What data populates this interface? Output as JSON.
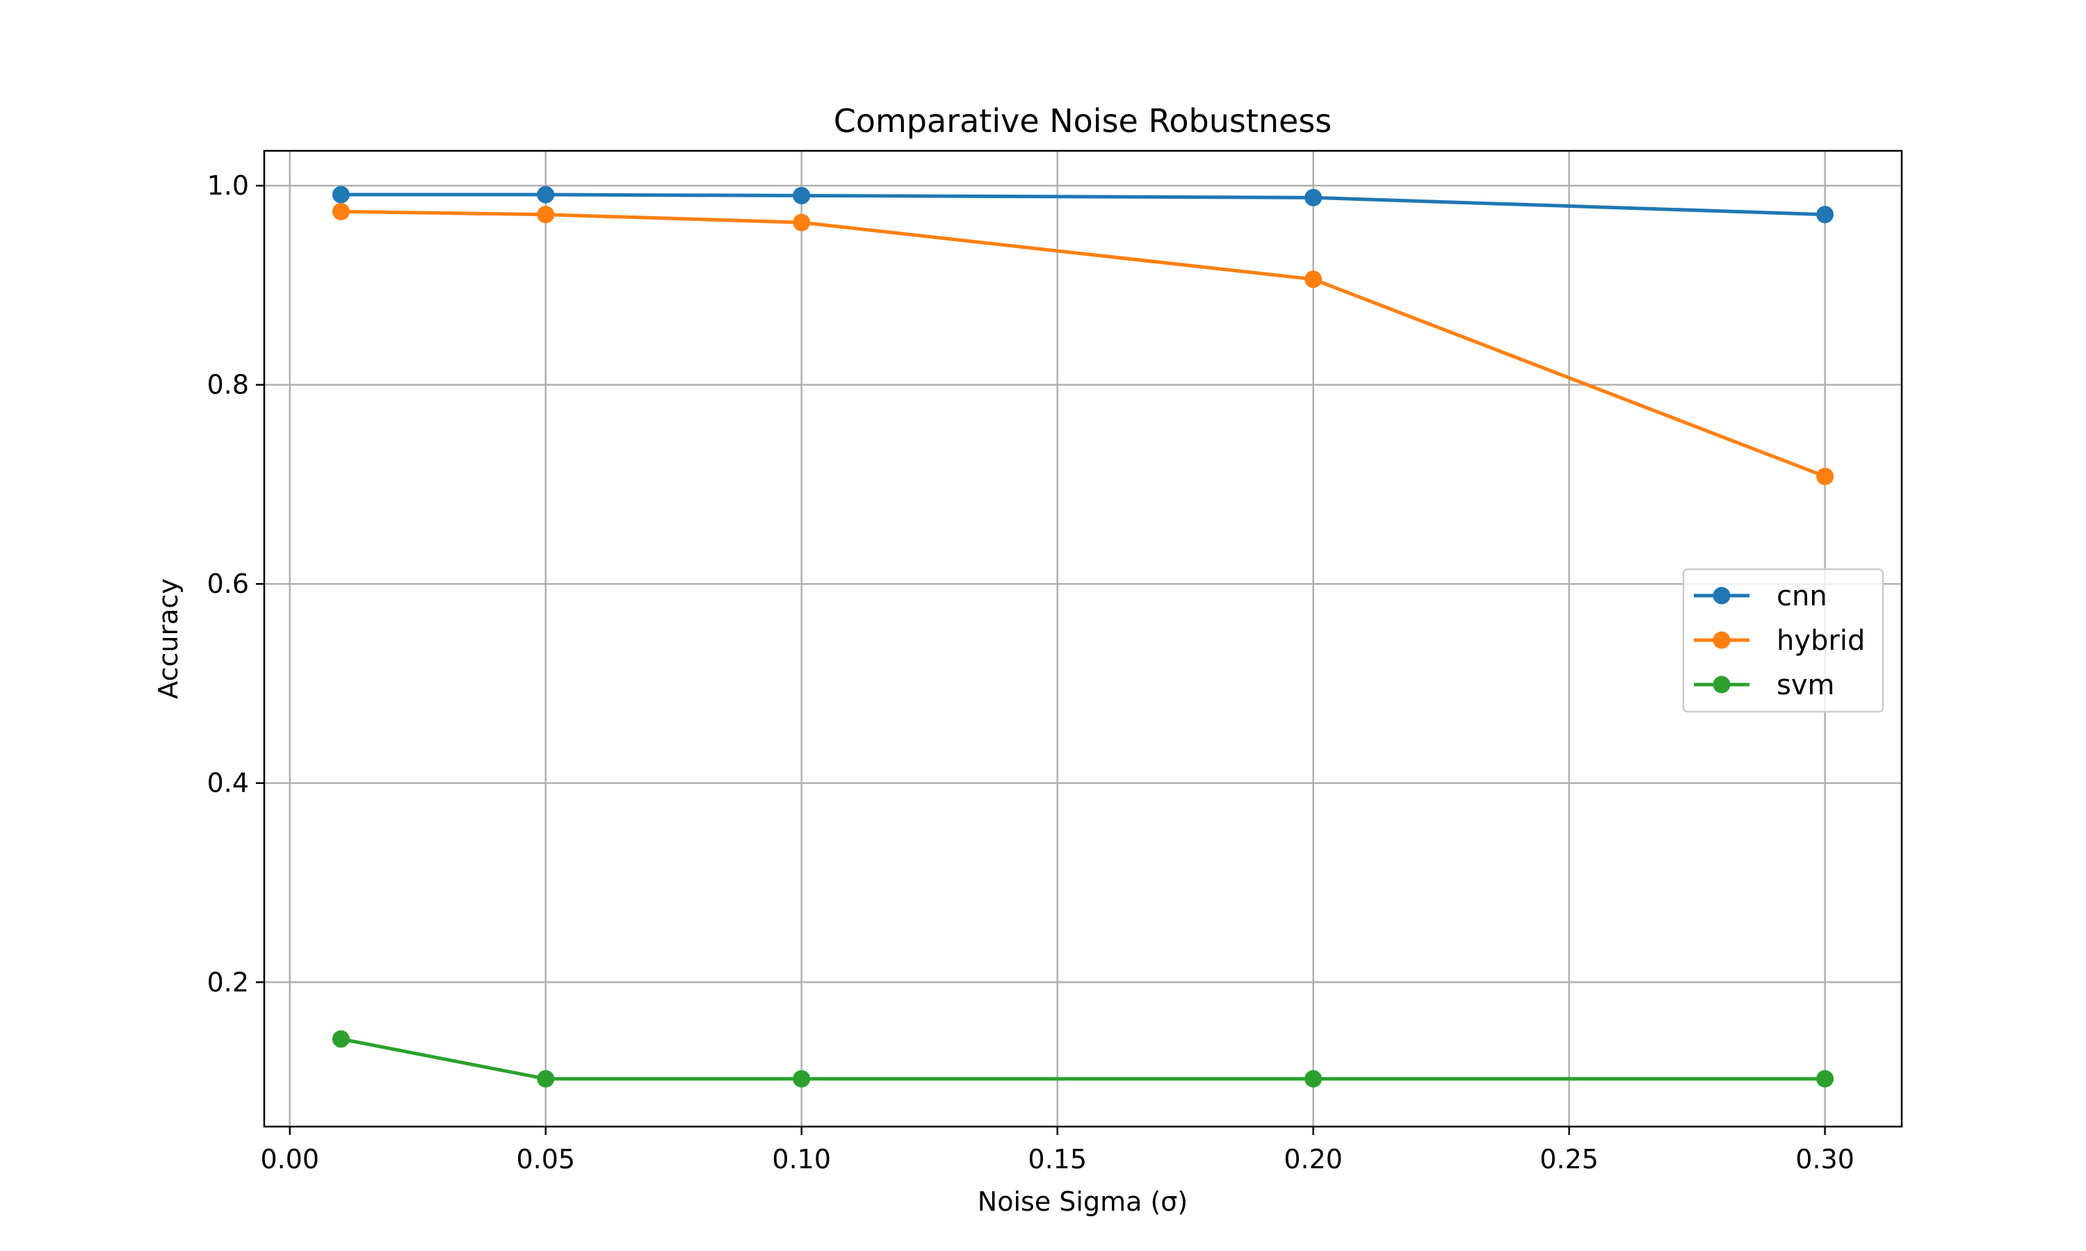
{
  "chart_data": {
    "type": "line",
    "title": "Comparative Noise Robustness",
    "xlabel": "Noise Sigma (σ)",
    "ylabel": "Accuracy",
    "xlim": [
      -0.005,
      0.315
    ],
    "ylim": [
      0.055,
      1.035
    ],
    "xticks": [
      0.0,
      0.05,
      0.1,
      0.15,
      0.2,
      0.25,
      0.3
    ],
    "xtick_labels": [
      "0.00",
      "0.05",
      "0.10",
      "0.15",
      "0.20",
      "0.25",
      "0.30"
    ],
    "yticks": [
      0.2,
      0.4,
      0.6,
      0.8,
      1.0
    ],
    "ytick_labels": [
      "0.2",
      "0.4",
      "0.6",
      "0.8",
      "1.0"
    ],
    "grid": true,
    "legend_position": "center-right",
    "x": [
      0.01,
      0.05,
      0.1,
      0.2,
      0.3
    ],
    "series": [
      {
        "name": "cnn",
        "color": "#1f77b4",
        "values": [
          0.991,
          0.991,
          0.99,
          0.988,
          0.971
        ]
      },
      {
        "name": "hybrid",
        "color": "#ff7f0e",
        "values": [
          0.974,
          0.971,
          0.963,
          0.906,
          0.708
        ]
      },
      {
        "name": "svm",
        "color": "#2ca02c",
        "values": [
          0.143,
          0.103,
          0.103,
          0.103,
          0.103
        ]
      }
    ]
  }
}
